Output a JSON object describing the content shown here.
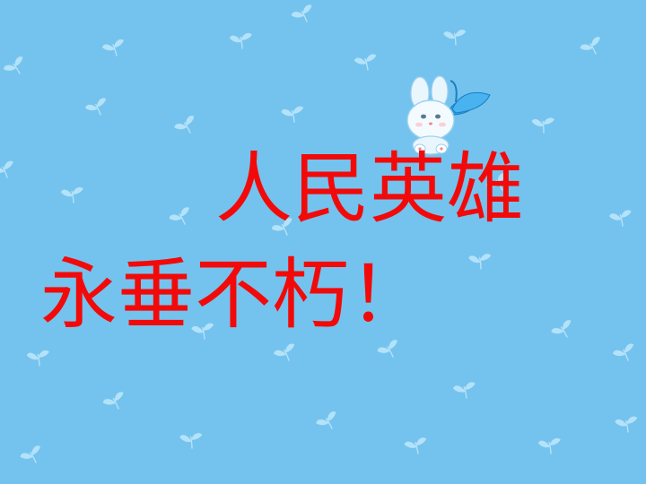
{
  "slide": {
    "headline_line1": "人民英雄",
    "headline_line2": "永垂不朽！",
    "colors": {
      "background": "#74c3ee",
      "headline": "#f20a0a",
      "sprout": "#b4e2f9"
    },
    "decoration": {
      "background_pattern": "sprout-icon",
      "mascot": "bunny-mascot-icon"
    }
  }
}
